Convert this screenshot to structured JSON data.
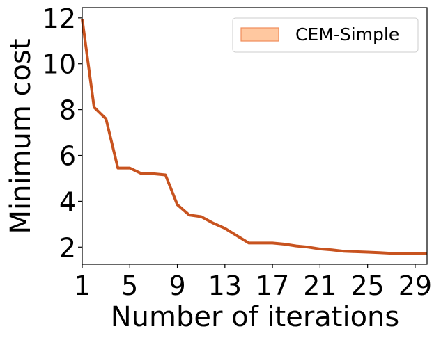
{
  "chart_data": {
    "type": "line",
    "xlabel": "Number of iterations",
    "ylabel": "Minimum cost",
    "xlim": [
      1,
      30
    ],
    "ylim": [
      1.25,
      12.45
    ],
    "xticks": [
      1,
      5,
      9,
      13,
      17,
      21,
      25,
      29
    ],
    "yticks": [
      2,
      4,
      6,
      8,
      10,
      12
    ],
    "grid": false,
    "legend_position": "top-right",
    "series": [
      {
        "name": "CEM-Simple",
        "color": "#c8531f",
        "legend_fill": "#ffc8a0",
        "legend_edge": "#f08c5a",
        "x": [
          1,
          2,
          3,
          4,
          5,
          6,
          7,
          8,
          9,
          10,
          11,
          12,
          13,
          14,
          15,
          16,
          17,
          18,
          19,
          20,
          21,
          22,
          23,
          24,
          25,
          26,
          27,
          28,
          29,
          30
        ],
        "y": [
          11.95,
          8.1,
          7.6,
          5.45,
          5.45,
          5.2,
          5.2,
          5.15,
          3.85,
          3.4,
          3.33,
          3.05,
          2.82,
          2.5,
          2.18,
          2.18,
          2.18,
          2.13,
          2.05,
          2.0,
          1.92,
          1.88,
          1.82,
          1.8,
          1.78,
          1.76,
          1.73,
          1.73,
          1.73,
          1.73
        ]
      }
    ]
  }
}
